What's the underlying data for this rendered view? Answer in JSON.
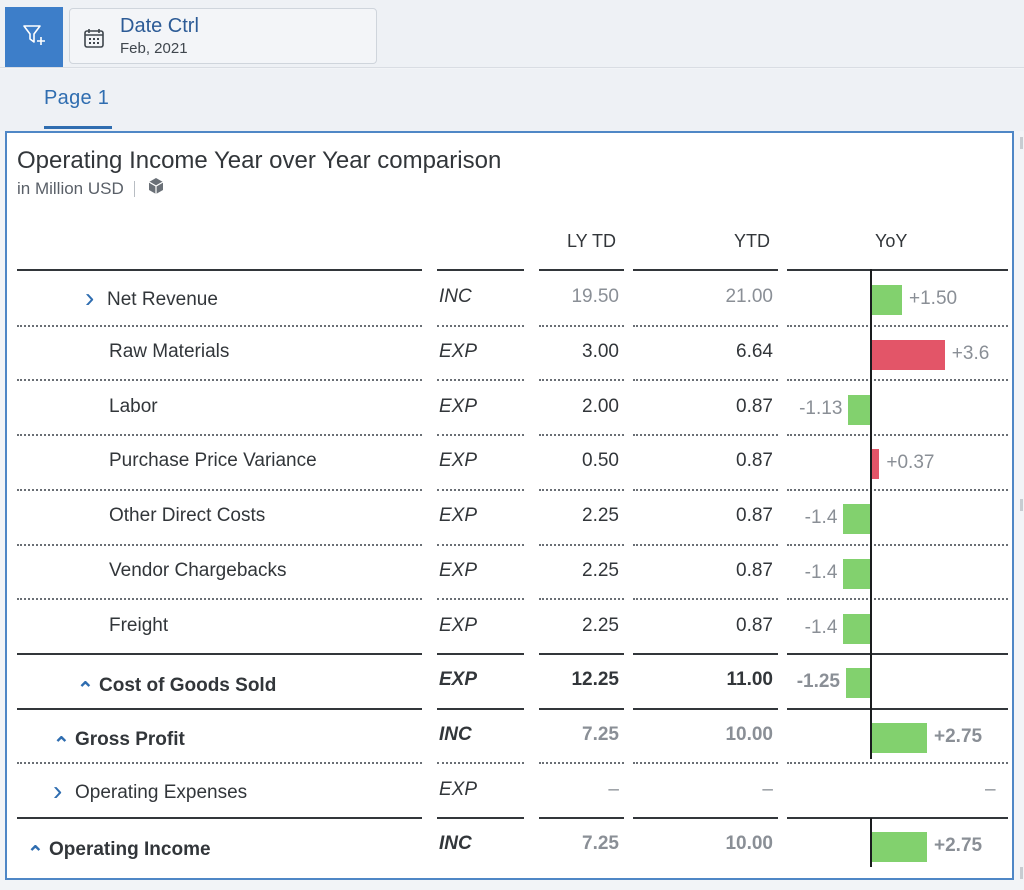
{
  "toolbar": {
    "filter_icon": "add-filter-icon",
    "date_ctrl": {
      "title": "Date Ctrl",
      "value": "Feb, 2021",
      "icon": "calendar-icon"
    }
  },
  "tabs": [
    {
      "label": "Page 1",
      "selected": true
    }
  ],
  "widget": {
    "title": "Operating Income Year over Year comparison",
    "subtitle": "in Million USD",
    "subtitle_icon": "cube-icon",
    "columns": {
      "label": "",
      "account": "",
      "ly_td": "LY TD",
      "ytd": "YTD",
      "yoy": "YoY"
    },
    "rows": [
      {
        "label": "Net Revenue",
        "expander": "collapsed",
        "type": "INC",
        "ly_td": "19.50",
        "ytd": "21.00",
        "yoy": "+1.50",
        "yoy_value": 1.5,
        "bar_color": "#82d16e"
      },
      {
        "label": "Raw Materials",
        "expander": "none",
        "type": "EXP",
        "ly_td": "3.00",
        "ytd": "6.64",
        "yoy": "+3.6",
        "yoy_value": 3.64,
        "bar_color": "#e35568"
      },
      {
        "label": "Labor",
        "expander": "none",
        "type": "EXP",
        "ly_td": "2.00",
        "ytd": "0.87",
        "yoy": "-1.13",
        "yoy_value": -1.13,
        "bar_color": "#82d16e"
      },
      {
        "label": "Purchase Price Variance",
        "expander": "none",
        "type": "EXP",
        "ly_td": "0.50",
        "ytd": "0.87",
        "yoy": "+0.37",
        "yoy_value": 0.37,
        "bar_color": "#e35568"
      },
      {
        "label": "Other Direct Costs",
        "expander": "none",
        "type": "EXP",
        "ly_td": "2.25",
        "ytd": "0.87",
        "yoy": "-1.4",
        "yoy_value": -1.38,
        "bar_color": "#82d16e"
      },
      {
        "label": "Vendor Chargebacks",
        "expander": "none",
        "type": "EXP",
        "ly_td": "2.25",
        "ytd": "0.87",
        "yoy": "-1.4",
        "yoy_value": -1.38,
        "bar_color": "#82d16e"
      },
      {
        "label": "Freight",
        "expander": "none",
        "type": "EXP",
        "ly_td": "2.25",
        "ytd": "0.87",
        "yoy": "-1.4",
        "yoy_value": -1.38,
        "bar_color": "#82d16e"
      },
      {
        "label": "Cost of Goods Sold",
        "expander": "expanded",
        "type": "EXP",
        "ly_td": "12.25",
        "ytd": "11.00",
        "yoy": "-1.25",
        "yoy_value": -1.25,
        "bar_color": "#82d16e"
      },
      {
        "label": "Gross Profit",
        "expander": "expanded",
        "type": "INC",
        "ly_td": "7.25",
        "ytd": "10.00",
        "yoy": "+2.75",
        "yoy_value": 2.75,
        "bar_color": "#82d16e"
      },
      {
        "label": "Operating Expenses",
        "expander": "collapsed",
        "type": "EXP",
        "ly_td": "–",
        "ytd": "–",
        "yoy": "–",
        "yoy_value": null,
        "bar_color": ""
      },
      {
        "label": "Operating Income",
        "expander": "expanded",
        "type": "INC",
        "ly_td": "7.25",
        "ytd": "10.00",
        "yoy": "+2.75",
        "yoy_value": 2.75,
        "bar_color": "#82d16e"
      }
    ]
  }
}
